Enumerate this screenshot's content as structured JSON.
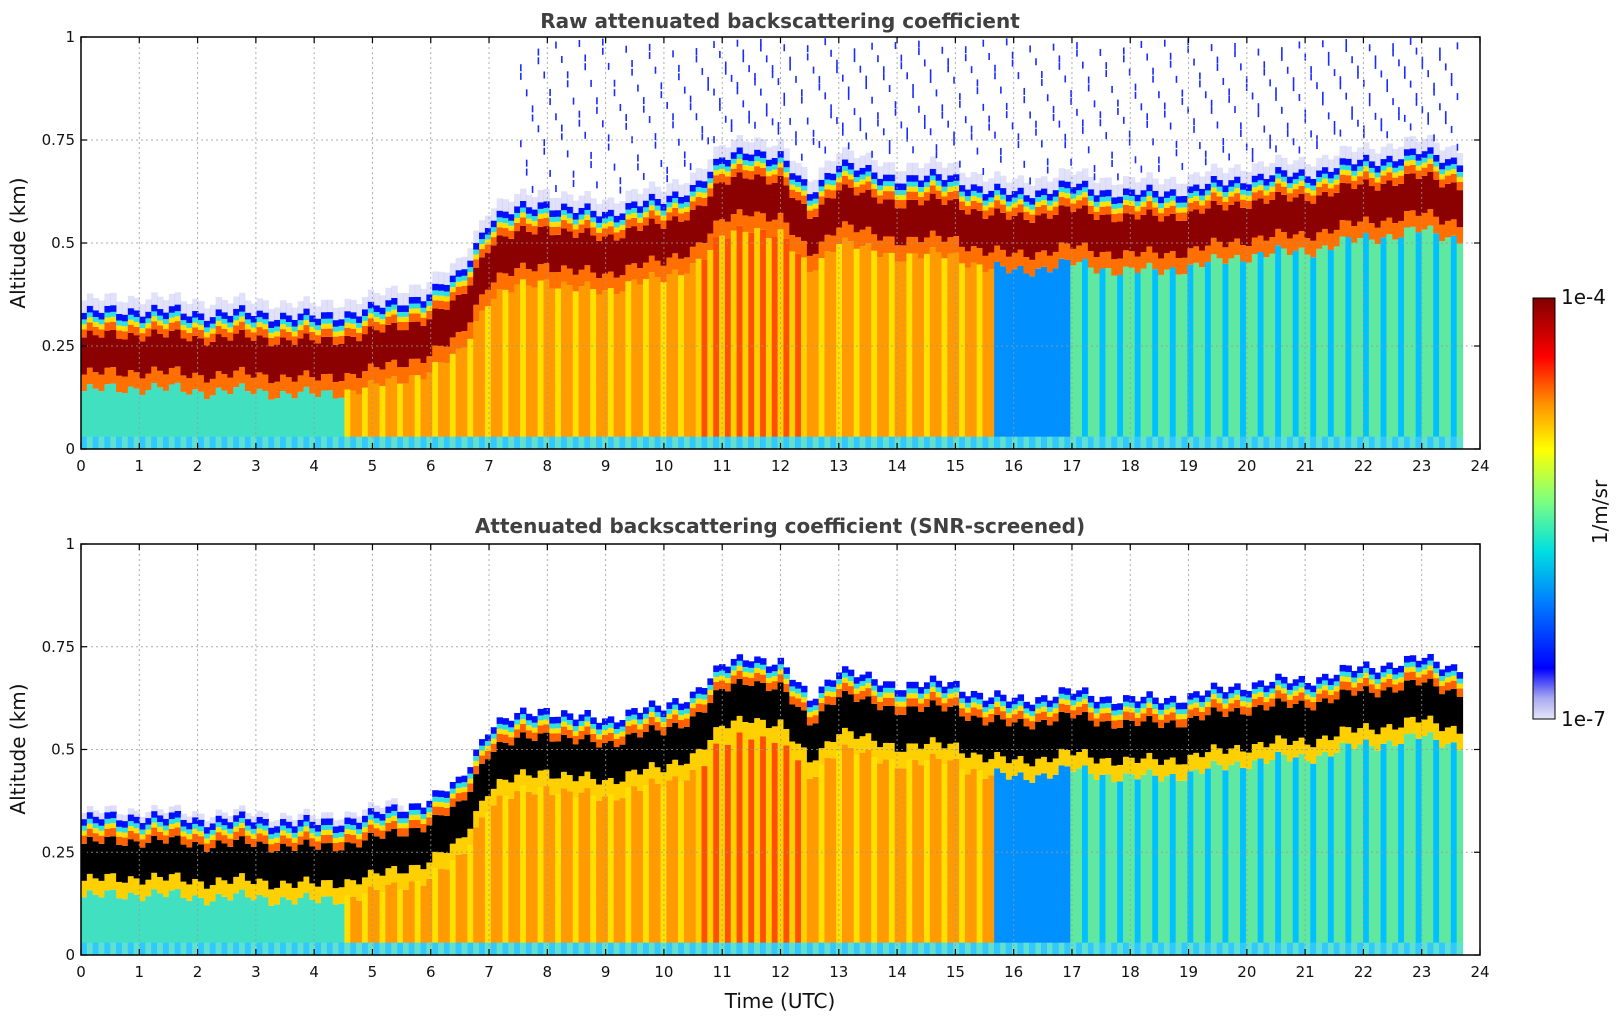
{
  "chart_data": [
    {
      "type": "heatmap",
      "title": "Raw attenuated backscattering coefficient",
      "xlabel": "",
      "ylabel": "Altitude (km)",
      "xlim": [
        0,
        24
      ],
      "ylim": [
        0,
        1
      ],
      "xticks": [
        "0",
        "1",
        "2",
        "3",
        "4",
        "5",
        "6",
        "7",
        "8",
        "9",
        "10",
        "11",
        "12",
        "13",
        "14",
        "15",
        "16",
        "17",
        "18",
        "19",
        "20",
        "21",
        "22",
        "23",
        "24"
      ],
      "yticks": [
        "0",
        "0.25",
        "0.5",
        "0.75",
        "1"
      ],
      "grid": true,
      "screened": false,
      "layer_top_km": {
        "time_utc": [
          0,
          1,
          2,
          3,
          4,
          5,
          6,
          6.5,
          7,
          7.5,
          8,
          8.5,
          9,
          9.5,
          10,
          10.5,
          11,
          11.5,
          12,
          12.5,
          13,
          13.5,
          14,
          15,
          15.5,
          16,
          17,
          18,
          19,
          20,
          21,
          22,
          23,
          23.7
        ],
        "altitude_km": [
          0.33,
          0.34,
          0.33,
          0.33,
          0.32,
          0.34,
          0.38,
          0.42,
          0.56,
          0.58,
          0.6,
          0.58,
          0.57,
          0.6,
          0.6,
          0.64,
          0.7,
          0.73,
          0.71,
          0.62,
          0.7,
          0.67,
          0.66,
          0.66,
          0.63,
          0.62,
          0.64,
          0.62,
          0.63,
          0.66,
          0.67,
          0.7,
          0.72,
          0.7
        ]
      }
    },
    {
      "type": "heatmap",
      "title": "Attenuated backscattering coefficient (SNR-screened)",
      "xlabel": "Time (UTC)",
      "ylabel": "Altitude (km)",
      "xlim": [
        0,
        24
      ],
      "ylim": [
        0,
        1
      ],
      "xticks": [
        "0",
        "1",
        "2",
        "3",
        "4",
        "5",
        "6",
        "7",
        "8",
        "9",
        "10",
        "11",
        "12",
        "13",
        "14",
        "15",
        "16",
        "17",
        "18",
        "19",
        "20",
        "21",
        "22",
        "23",
        "24"
      ],
      "yticks": [
        "0",
        "0.25",
        "0.5",
        "0.75",
        "1"
      ],
      "grid": true,
      "screened": true,
      "layer_top_km": {
        "time_utc": [
          0,
          1,
          2,
          3,
          4,
          5,
          6,
          6.5,
          7,
          7.5,
          8,
          8.5,
          9,
          9.5,
          10,
          10.5,
          11,
          11.5,
          12,
          12.5,
          13,
          13.5,
          14,
          15,
          15.5,
          16,
          17,
          18,
          19,
          20,
          21,
          22,
          23,
          23.7
        ],
        "altitude_km": [
          0.33,
          0.34,
          0.33,
          0.33,
          0.32,
          0.34,
          0.38,
          0.42,
          0.56,
          0.58,
          0.6,
          0.58,
          0.57,
          0.6,
          0.6,
          0.64,
          0.7,
          0.73,
          0.71,
          0.62,
          0.7,
          0.67,
          0.66,
          0.66,
          0.63,
          0.62,
          0.64,
          0.62,
          0.63,
          0.66,
          0.67,
          0.7,
          0.72,
          0.7
        ]
      }
    }
  ],
  "colorbar": {
    "label": "1/m/sr",
    "max_label": "1e-4",
    "min_label": "1e-7",
    "colors": [
      "#e6e6fa",
      "#0000ff",
      "#00bfff",
      "#7fff7f",
      "#ffff00",
      "#ff8000",
      "#ff0000",
      "#800000"
    ]
  }
}
